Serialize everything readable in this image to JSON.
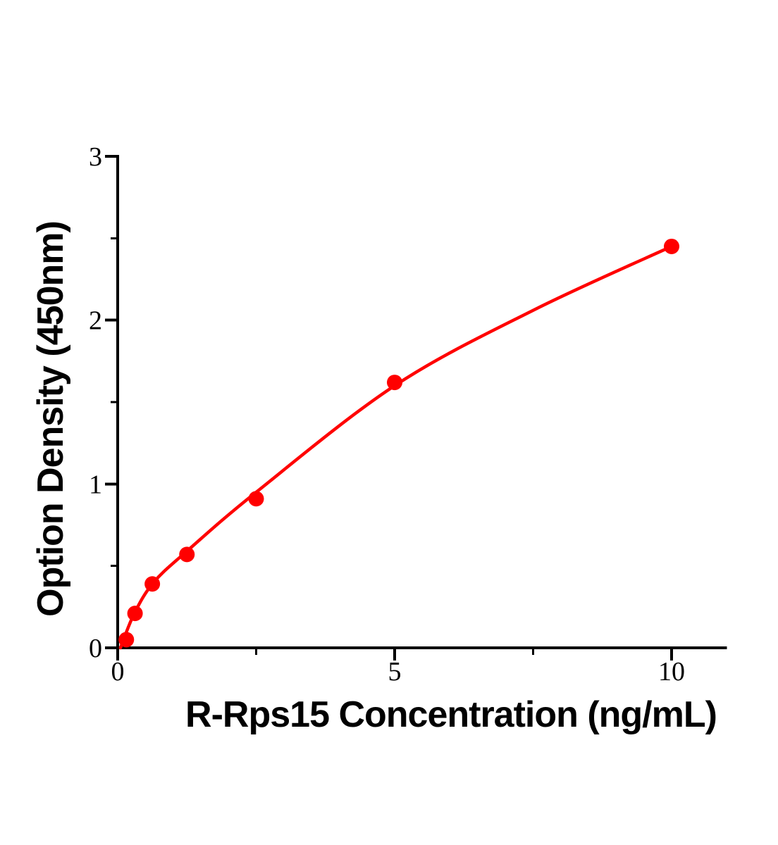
{
  "figure": {
    "background": "#ffffff"
  },
  "chart_data": {
    "type": "scatter",
    "title": "",
    "xlabel": "R-Rps15 Concentration (ng/mL)",
    "ylabel": "Option Density (450nm)",
    "xlim": [
      0,
      11
    ],
    "ylim": [
      0,
      3
    ],
    "x_major_ticks": [
      0,
      5,
      10
    ],
    "x_minor_ticks": [
      2.5,
      7.5
    ],
    "y_major_ticks": [
      0,
      1,
      2,
      3
    ],
    "y_minor_ticks": [
      0.5,
      1.5,
      2.5
    ],
    "grid": false,
    "legend": "none",
    "axis_color": "#000000",
    "tick_label_color": "#000000",
    "point_color": "#ff0000",
    "curve_color": "#ff0000",
    "points": [
      {
        "x": 0.156,
        "y": 0.05
      },
      {
        "x": 0.313,
        "y": 0.21
      },
      {
        "x": 0.625,
        "y": 0.39
      },
      {
        "x": 1.25,
        "y": 0.57
      },
      {
        "x": 2.5,
        "y": 0.91
      },
      {
        "x": 5,
        "y": 1.62
      },
      {
        "x": 10,
        "y": 2.45
      }
    ],
    "fit_curve_points": [
      {
        "x": 0.05,
        "y": 0.0
      },
      {
        "x": 0.3,
        "y": 0.21
      },
      {
        "x": 0.65,
        "y": 0.4
      },
      {
        "x": 1.25,
        "y": 0.59
      },
      {
        "x": 2.5,
        "y": 0.95
      },
      {
        "x": 5.0,
        "y": 1.6
      },
      {
        "x": 7.5,
        "y": 2.06
      },
      {
        "x": 10.0,
        "y": 2.45
      }
    ]
  }
}
